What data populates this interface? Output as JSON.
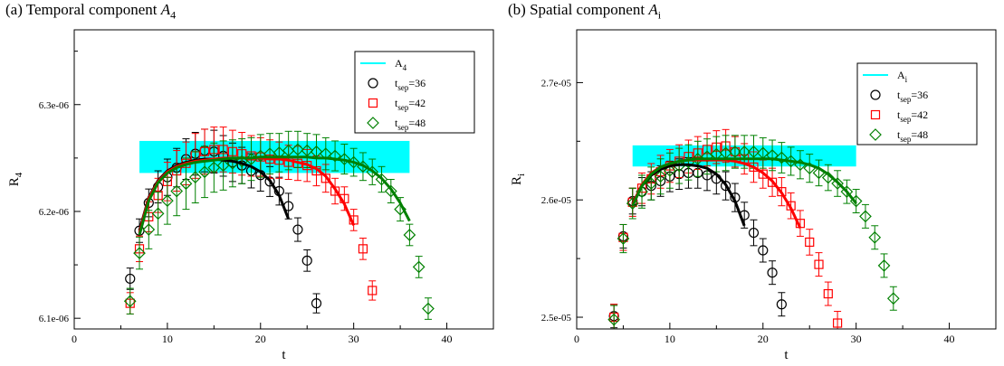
{
  "panels": [
    {
      "id": "a",
      "title_prefix": "(a)  Temporal component ",
      "title_symbol": "A",
      "title_sub": "4"
    },
    {
      "id": "b",
      "title_prefix": "(b)  Spatial component ",
      "title_symbol": "A",
      "title_sub": "i"
    }
  ],
  "chart_data": [
    {
      "type": "scatter",
      "title": "(a) Temporal component A4",
      "xlabel": "t",
      "ylabel": {
        "main": "R",
        "sub": "4"
      },
      "xlim": [
        0,
        45
      ],
      "ylim": [
        6.09e-06,
        6.37e-06
      ],
      "xticks": [
        0,
        10,
        20,
        30,
        40
      ],
      "yticks": [
        6.1e-06,
        6.2e-06,
        6.3e-06
      ],
      "ytick_labels": [
        "6.1e-06",
        "6.2e-06",
        "6.3e-06"
      ],
      "grid": false,
      "legend_position": "top-right",
      "band": {
        "name": {
          "main": "A",
          "sub": "4"
        },
        "color": "#00ffff",
        "x": [
          7,
          36
        ],
        "y": 6.251e-06,
        "err": 1.5e-08
      },
      "series": [
        {
          "name": {
            "main": "t",
            "sub": "sep",
            "suffix": "=36"
          },
          "marker": "circle",
          "color": "#000000",
          "x": [
            6,
            7,
            8,
            9,
            10,
            11,
            12,
            13,
            14,
            15,
            16,
            17,
            18,
            19,
            20,
            21,
            22,
            23,
            24,
            25,
            26
          ],
          "y": [
            6.137e-06,
            6.182e-06,
            6.208e-06,
            6.223e-06,
            6.232e-06,
            6.241e-06,
            6.249e-06,
            6.254e-06,
            6.257e-06,
            6.256e-06,
            6.252e-06,
            6.246e-06,
            6.243e-06,
            6.238e-06,
            6.234e-06,
            6.228e-06,
            6.219e-06,
            6.205e-06,
            6.183e-06,
            6.154e-06,
            6.114e-06
          ],
          "err": [
            1e-08,
            1.1e-08,
            1.3e-08,
            1.5e-08,
            1.7e-08,
            1.8e-08,
            1.9e-08,
            2e-08,
            2e-08,
            2e-08,
            1.9e-08,
            1.8e-08,
            1.7e-08,
            1.6e-08,
            1.5e-08,
            1.4e-08,
            1.3e-08,
            1.2e-08,
            1.1e-08,
            1e-08,
            9e-09
          ]
        },
        {
          "name": {
            "main": "t",
            "sub": "sep",
            "suffix": "=42"
          },
          "marker": "square",
          "color": "#ff0000",
          "x": [
            6,
            7,
            8,
            9,
            10,
            11,
            12,
            13,
            14,
            15,
            16,
            17,
            18,
            19,
            20,
            21,
            22,
            23,
            24,
            25,
            26,
            27,
            28,
            29,
            30,
            31,
            32
          ],
          "y": [
            6.114e-06,
            6.165e-06,
            6.195e-06,
            6.215e-06,
            6.228e-06,
            6.238e-06,
            6.245e-06,
            6.252e-06,
            6.256e-06,
            6.258e-06,
            6.258e-06,
            6.256e-06,
            6.254e-06,
            6.252e-06,
            6.251e-06,
            6.249e-06,
            6.248e-06,
            6.246e-06,
            6.245e-06,
            6.243e-06,
            6.238e-06,
            6.231e-06,
            6.219e-06,
            6.212e-06,
            6.192e-06,
            6.165e-06,
            6.126e-06
          ],
          "err": [
            1e-08,
            1.2e-08,
            1.4e-08,
            1.6e-08,
            1.8e-08,
            1.9e-08,
            2e-08,
            2.1e-08,
            2.1e-08,
            2.1e-08,
            2.1e-08,
            2e-08,
            2e-08,
            1.9e-08,
            1.8e-08,
            1.8e-08,
            1.7e-08,
            1.6e-08,
            1.6e-08,
            1.5e-08,
            1.4e-08,
            1.3e-08,
            1.2e-08,
            1.1e-08,
            1e-08,
            1e-08,
            9e-09
          ]
        },
        {
          "name": {
            "main": "t",
            "sub": "sep",
            "suffix": "=48"
          },
          "marker": "diamond",
          "color": "#008000",
          "x": [
            6,
            7,
            8,
            9,
            10,
            11,
            12,
            13,
            14,
            15,
            16,
            17,
            18,
            19,
            20,
            21,
            22,
            23,
            24,
            25,
            26,
            27,
            28,
            29,
            30,
            31,
            32,
            33,
            34,
            35,
            36,
            37,
            38
          ],
          "y": [
            6.116e-06,
            6.161e-06,
            6.183e-06,
            6.198e-06,
            6.21e-06,
            6.219e-06,
            6.226e-06,
            6.232e-06,
            6.237e-06,
            6.241e-06,
            6.243e-06,
            6.245e-06,
            6.247e-06,
            6.249e-06,
            6.252e-06,
            6.254e-06,
            6.255e-06,
            6.257e-06,
            6.258e-06,
            6.257e-06,
            6.256e-06,
            6.254e-06,
            6.252e-06,
            6.249e-06,
            6.246e-06,
            6.242e-06,
            6.237e-06,
            6.23e-06,
            6.219e-06,
            6.202e-06,
            6.178e-06,
            6.148e-06,
            6.109e-06
          ],
          "err": [
            1.2e-08,
            1.5e-08,
            1.8e-08,
            2e-08,
            2.2e-08,
            2.3e-08,
            2.4e-08,
            2.4e-08,
            2.4e-08,
            2.3e-08,
            2.3e-08,
            2.2e-08,
            2.1e-08,
            2e-08,
            2e-08,
            1.9e-08,
            1.8e-08,
            1.8e-08,
            1.7e-08,
            1.6e-08,
            1.6e-08,
            1.5e-08,
            1.4e-08,
            1.4e-08,
            1.3e-08,
            1.3e-08,
            1.2e-08,
            1.2e-08,
            1.1e-08,
            1.1e-08,
            1e-08,
            1e-08,
            1e-08
          ]
        }
      ],
      "fits": [
        {
          "color": "#000000",
          "x": [
            7,
            8,
            9,
            10,
            11,
            12,
            13,
            14,
            15,
            16,
            17,
            18,
            19,
            20,
            21,
            22,
            23
          ],
          "y": [
            6.182e-06,
            6.213e-06,
            6.229e-06,
            6.238e-06,
            6.243e-06,
            6.246e-06,
            6.248e-06,
            6.249e-06,
            6.249e-06,
            6.248e-06,
            6.247e-06,
            6.245e-06,
            6.242e-06,
            6.237e-06,
            6.229e-06,
            6.215e-06,
            6.193e-06
          ]
        },
        {
          "color": "#ff0000",
          "x": [
            7,
            8,
            9,
            10,
            11,
            12,
            13,
            14,
            15,
            16,
            17,
            18,
            19,
            20,
            21,
            22,
            23,
            24,
            25,
            26,
            27,
            28,
            29,
            30
          ],
          "y": [
            6.18e-06,
            6.212e-06,
            6.228e-06,
            6.237e-06,
            6.242e-06,
            6.245e-06,
            6.247e-06,
            6.248e-06,
            6.249e-06,
            6.25e-06,
            6.25e-06,
            6.25e-06,
            6.25e-06,
            6.25e-06,
            6.249e-06,
            6.249e-06,
            6.248e-06,
            6.246e-06,
            6.244e-06,
            6.24e-06,
            6.233e-06,
            6.221e-06,
            6.207e-06,
            6.187e-06
          ]
        },
        {
          "color": "#008000",
          "x": [
            7,
            8,
            9,
            10,
            11,
            12,
            13,
            14,
            15,
            16,
            17,
            18,
            19,
            20,
            21,
            22,
            23,
            24,
            25,
            26,
            27,
            28,
            29,
            30,
            31,
            32,
            33,
            34,
            35,
            36
          ],
          "y": [
            6.178e-06,
            6.21e-06,
            6.227e-06,
            6.236e-06,
            6.241e-06,
            6.244e-06,
            6.246e-06,
            6.247e-06,
            6.248e-06,
            6.249e-06,
            6.25e-06,
            6.25e-06,
            6.25e-06,
            6.251e-06,
            6.251e-06,
            6.251e-06,
            6.251e-06,
            6.251e-06,
            6.251e-06,
            6.25e-06,
            6.25e-06,
            6.249e-06,
            6.248e-06,
            6.246e-06,
            6.243e-06,
            6.238e-06,
            6.231e-06,
            6.221e-06,
            6.208e-06,
            6.191e-06
          ]
        }
      ]
    },
    {
      "type": "scatter",
      "title": "(b) Spatial component Ai",
      "xlabel": "t",
      "ylabel": {
        "main": "R",
        "sub": "i"
      },
      "xlim": [
        0,
        45
      ],
      "ylim": [
        2.49e-05,
        2.745e-05
      ],
      "xticks": [
        0,
        10,
        20,
        30,
        40
      ],
      "yticks": [
        2.5e-05,
        2.6e-05,
        2.7e-05
      ],
      "ytick_labels": [
        "2.5e-05",
        "2.6e-05",
        "2.7e-05"
      ],
      "grid": false,
      "legend_position": "top-right",
      "band": {
        "name": {
          "main": "A",
          "sub": "i"
        },
        "color": "#00ffff",
        "x": [
          6,
          30
        ],
        "y": 2.6375e-05,
        "err": 9e-08
      },
      "series": [
        {
          "name": {
            "main": "t",
            "sub": "sep",
            "suffix": "=36"
          },
          "marker": "circle",
          "color": "#000000",
          "x": [
            4,
            5,
            6,
            7,
            8,
            9,
            10,
            11,
            12,
            13,
            14,
            15,
            16,
            17,
            18,
            19,
            20,
            21,
            22
          ],
          "y": [
            2.501e-05,
            2.569e-05,
            2.599e-05,
            2.607e-05,
            2.612e-05,
            2.616e-05,
            2.62e-05,
            2.622e-05,
            2.623e-05,
            2.623e-05,
            2.621e-05,
            2.618e-05,
            2.612e-05,
            2.602e-05,
            2.587e-05,
            2.572e-05,
            2.557e-05,
            2.538e-05,
            2.511e-05
          ],
          "err": [
            1e-07,
            1e-07,
            1.1e-07,
            1.2e-07,
            1.2e-07,
            1.3e-07,
            1.3e-07,
            1.3e-07,
            1.3e-07,
            1.3e-07,
            1.3e-07,
            1.3e-07,
            1.2e-07,
            1.2e-07,
            1.1e-07,
            1.1e-07,
            1e-07,
            1e-07,
            1e-07
          ]
        },
        {
          "name": {
            "main": "t",
            "sub": "sep",
            "suffix": "=42"
          },
          "marker": "square",
          "color": "#ff0000",
          "x": [
            4,
            5,
            6,
            7,
            8,
            9,
            10,
            11,
            12,
            13,
            14,
            15,
            16,
            17,
            18,
            19,
            20,
            21,
            22,
            23,
            24,
            25,
            26,
            27,
            28
          ],
          "y": [
            2.5e-05,
            2.568e-05,
            2.598e-05,
            2.61e-05,
            2.618e-05,
            2.624e-05,
            2.629e-05,
            2.633e-05,
            2.637e-05,
            2.64e-05,
            2.643e-05,
            2.645e-05,
            2.646e-05,
            2.641e-05,
            2.635e-05,
            2.628e-05,
            2.622e-05,
            2.615e-05,
            2.607e-05,
            2.595e-05,
            2.58e-05,
            2.564e-05,
            2.545e-05,
            2.52e-05,
            2.495e-05
          ],
          "err": [
            1.1e-07,
            1.1e-07,
            1.2e-07,
            1.3e-07,
            1.3e-07,
            1.4e-07,
            1.4e-07,
            1.4e-07,
            1.4e-07,
            1.4e-07,
            1.4e-07,
            1.4e-07,
            1.4e-07,
            1.3e-07,
            1.3e-07,
            1.3e-07,
            1.2e-07,
            1.2e-07,
            1.2e-07,
            1.1e-07,
            1.1e-07,
            1.1e-07,
            1e-07,
            1e-07,
            1e-07
          ]
        },
        {
          "name": {
            "main": "t",
            "sub": "sep",
            "suffix": "=48"
          },
          "marker": "diamond",
          "color": "#008000",
          "x": [
            4,
            5,
            6,
            7,
            8,
            9,
            10,
            11,
            12,
            13,
            14,
            15,
            16,
            17,
            18,
            19,
            20,
            21,
            22,
            23,
            24,
            25,
            26,
            27,
            28,
            29,
            30,
            31,
            32,
            33,
            34
          ],
          "y": [
            2.498e-05,
            2.567e-05,
            2.597e-05,
            2.607e-05,
            2.614e-05,
            2.62e-05,
            2.625e-05,
            2.629e-05,
            2.632e-05,
            2.635e-05,
            2.637e-05,
            2.639e-05,
            2.64e-05,
            2.641e-05,
            2.641e-05,
            2.641e-05,
            2.64e-05,
            2.638e-05,
            2.636e-05,
            2.633e-05,
            2.63e-05,
            2.627e-05,
            2.623e-05,
            2.619e-05,
            2.614e-05,
            2.607e-05,
            2.599e-05,
            2.586e-05,
            2.568e-05,
            2.544e-05,
            2.516e-05
          ],
          "err": [
            1.2e-07,
            1.2e-07,
            1.3e-07,
            1.4e-07,
            1.4e-07,
            1.5e-07,
            1.5e-07,
            1.5e-07,
            1.5e-07,
            1.5e-07,
            1.5e-07,
            1.5e-07,
            1.5e-07,
            1.4e-07,
            1.4e-07,
            1.4e-07,
            1.3e-07,
            1.3e-07,
            1.3e-07,
            1.2e-07,
            1.2e-07,
            1.2e-07,
            1.1e-07,
            1.1e-07,
            1.1e-07,
            1e-07,
            1e-07,
            1e-07,
            1e-07,
            1e-07,
            1e-07
          ]
        }
      ],
      "fits": [
        {
          "color": "#000000",
          "x": [
            6,
            7,
            8,
            9,
            10,
            11,
            12,
            13,
            14,
            15,
            16,
            17,
            18
          ],
          "y": [
            2.597e-05,
            2.612e-05,
            2.621e-05,
            2.626e-05,
            2.629e-05,
            2.63e-05,
            2.63e-05,
            2.629e-05,
            2.627e-05,
            2.622e-05,
            2.613e-05,
            2.599e-05,
            2.578e-05
          ]
        },
        {
          "color": "#ff0000",
          "x": [
            6,
            7,
            8,
            9,
            10,
            11,
            12,
            13,
            14,
            15,
            16,
            17,
            18,
            19,
            20,
            21,
            22,
            23,
            24
          ],
          "y": [
            2.596e-05,
            2.613e-05,
            2.623e-05,
            2.628e-05,
            2.631e-05,
            2.633e-05,
            2.634e-05,
            2.634e-05,
            2.634e-05,
            2.634e-05,
            2.634e-05,
            2.633e-05,
            2.631e-05,
            2.628e-05,
            2.623e-05,
            2.616e-05,
            2.606e-05,
            2.593e-05,
            2.576e-05
          ]
        },
        {
          "color": "#008000",
          "x": [
            6,
            7,
            8,
            9,
            10,
            11,
            12,
            13,
            14,
            15,
            16,
            17,
            18,
            19,
            20,
            21,
            22,
            23,
            24,
            25,
            26,
            27,
            28,
            29,
            30
          ],
          "y": [
            2.595e-05,
            2.612e-05,
            2.622e-05,
            2.628e-05,
            2.631e-05,
            2.633e-05,
            2.634e-05,
            2.635e-05,
            2.635e-05,
            2.635e-05,
            2.635e-05,
            2.635e-05,
            2.635e-05,
            2.635e-05,
            2.635e-05,
            2.635e-05,
            2.634e-05,
            2.633e-05,
            2.632e-05,
            2.63e-05,
            2.627e-05,
            2.622e-05,
            2.615e-05,
            2.607e-05,
            2.597e-05
          ]
        }
      ]
    }
  ]
}
